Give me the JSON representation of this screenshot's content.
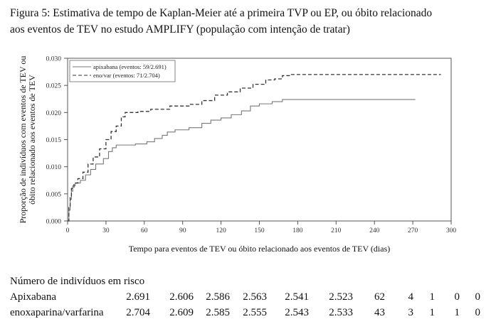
{
  "caption": {
    "line1": "Figura 5: Estimativa de tempo de Kaplan-Meier até a primeira TVP ou EP, ou óbito relacionado",
    "line2": "aos eventos de TEV no estudo AMPLIFY (população com intenção de tratar)"
  },
  "chart_data": {
    "type": "line",
    "step": true,
    "xlabel": "Tempo para eventos de TEV ou óbito relacionado aos eventos de TEV (dias)",
    "ylabel_lines": [
      "Proporção de indivíduos com eventos de TEV ou",
      "óbito relacionado aos eventos de TEV"
    ],
    "xlim": [
      0,
      300
    ],
    "ylim": [
      0,
      0.03
    ],
    "x_ticks": [
      "0",
      "30",
      "60",
      "90",
      "120",
      "150",
      "180",
      "210",
      "240",
      "270",
      "300"
    ],
    "y_ticks": [
      "0.000",
      "0.005",
      "0.010",
      "0.015",
      "0.020",
      "0.025",
      "0.030"
    ],
    "legend_position": "top-left",
    "series": [
      {
        "name": "apixabana (eventos: 59/2.691)",
        "color": "#777777",
        "dash": "solid",
        "points": [
          [
            0,
            0
          ],
          [
            1,
            0.002
          ],
          [
            2,
            0.004
          ],
          [
            3,
            0.0055
          ],
          [
            4,
            0.0065
          ],
          [
            6,
            0.007
          ],
          [
            10,
            0.0075
          ],
          [
            14,
            0.0085
          ],
          [
            18,
            0.0095
          ],
          [
            22,
            0.0105
          ],
          [
            28,
            0.0115
          ],
          [
            32,
            0.0128
          ],
          [
            35,
            0.0135
          ],
          [
            38,
            0.014
          ],
          [
            48,
            0.014
          ],
          [
            53,
            0.0142
          ],
          [
            60,
            0.0142
          ],
          [
            62,
            0.0146
          ],
          [
            68,
            0.0152
          ],
          [
            74,
            0.0158
          ],
          [
            78,
            0.0164
          ],
          [
            84,
            0.0168
          ],
          [
            95,
            0.0172
          ],
          [
            105,
            0.018
          ],
          [
            112,
            0.0186
          ],
          [
            120,
            0.019
          ],
          [
            128,
            0.0196
          ],
          [
            136,
            0.0203
          ],
          [
            143,
            0.0212
          ],
          [
            150,
            0.0216
          ],
          [
            160,
            0.022
          ],
          [
            168,
            0.0224
          ],
          [
            272,
            0.0224
          ]
        ]
      },
      {
        "name": "eno/var (eventos: 71/2.704)",
        "color": "#333333",
        "dash": "dashed",
        "points": [
          [
            0,
            0
          ],
          [
            1,
            0.0025
          ],
          [
            2,
            0.0045
          ],
          [
            3,
            0.006
          ],
          [
            5,
            0.007
          ],
          [
            8,
            0.0078
          ],
          [
            12,
            0.009
          ],
          [
            16,
            0.0105
          ],
          [
            20,
            0.0118
          ],
          [
            25,
            0.0133
          ],
          [
            30,
            0.015
          ],
          [
            34,
            0.0165
          ],
          [
            38,
            0.0175
          ],
          [
            42,
            0.0192
          ],
          [
            45,
            0.02
          ],
          [
            55,
            0.0202
          ],
          [
            65,
            0.0206
          ],
          [
            80,
            0.0212
          ],
          [
            95,
            0.0215
          ],
          [
            105,
            0.0222
          ],
          [
            115,
            0.0232
          ],
          [
            125,
            0.0238
          ],
          [
            135,
            0.0245
          ],
          [
            145,
            0.0252
          ],
          [
            155,
            0.026
          ],
          [
            162,
            0.0262
          ],
          [
            168,
            0.0268
          ],
          [
            175,
            0.027
          ],
          [
            292,
            0.027
          ]
        ]
      }
    ],
    "grid": false
  },
  "risk_table": {
    "title": "Número de indivíduos em risco",
    "rows": [
      {
        "group": "Apixabana",
        "values": [
          "2.691",
          "2.606",
          "2.586",
          "2.563",
          "2.541",
          "2.523",
          "62",
          "4",
          "1",
          "0",
          "0"
        ]
      },
      {
        "group": "enoxaparina/varfarina",
        "values": [
          "2.704",
          "2.609",
          "2.585",
          "2.555",
          "2.543",
          "2.533",
          "43",
          "3",
          "1",
          "1",
          "0"
        ]
      }
    ]
  }
}
